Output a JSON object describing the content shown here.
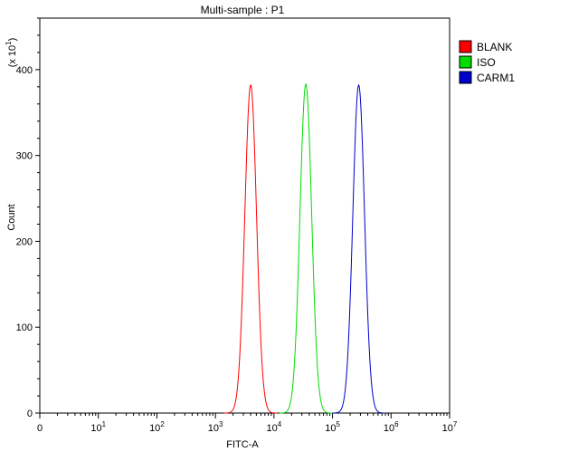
{
  "chart_data": {
    "type": "line",
    "title": "Multi-sample : P1",
    "xlabel": "FITC-A",
    "ylabel": "Count",
    "y_multiplier": "(x 10",
    "y_multiplier_exp": "1",
    "y_multiplier_close": ")",
    "x_scale": "log",
    "xlim": [
      1,
      10000000
    ],
    "ylim": [
      0,
      460
    ],
    "x_ticks": [
      {
        "value": 1,
        "base": "0",
        "exp": ""
      },
      {
        "value": 10,
        "base": "10",
        "exp": "1"
      },
      {
        "value": 100,
        "base": "10",
        "exp": "2"
      },
      {
        "value": 1000,
        "base": "10",
        "exp": "3"
      },
      {
        "value": 10000,
        "base": "10",
        "exp": "4"
      },
      {
        "value": 100000,
        "base": "10",
        "exp": "5"
      },
      {
        "value": 1000000,
        "base": "10",
        "exp": "6"
      },
      {
        "value": 10000000,
        "base": "10",
        "exp": "7"
      }
    ],
    "y_ticks": [
      "0",
      "100",
      "200",
      "300",
      "400"
    ],
    "legend_position": "top-right",
    "series": [
      {
        "name": "BLANK",
        "color": "#ff0000",
        "peak_x": 4000,
        "peak_y": 382
      },
      {
        "name": "ISO",
        "color": "#00dd00",
        "peak_x": 35000,
        "peak_y": 383
      },
      {
        "name": "CARM1",
        "color": "#0000cc",
        "peak_x": 280000,
        "peak_y": 382
      }
    ]
  }
}
